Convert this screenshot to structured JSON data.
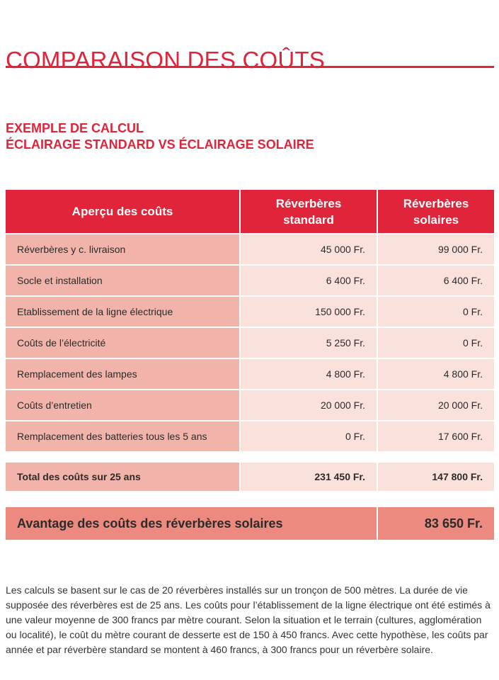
{
  "page": {
    "title": "COMPARAISON DES COÛTS",
    "subtitle_line1": "EXEMPLE DE CALCUL",
    "subtitle_line2": "ÉCLAIRAGE STANDARD VS ÉCLAIRAGE SOLAIRE"
  },
  "table": {
    "headers": {
      "col1": "Aperçu des coûts",
      "col2_line1": "Réverbères",
      "col2_line2": "standard",
      "col3_line1": "Réverbères",
      "col3_line2": "solaires"
    },
    "rows": [
      {
        "label": "Réverbères y c. livraison",
        "standard": "45 000 Fr.",
        "solaire": "99 000 Fr."
      },
      {
        "label": "Socle et installation",
        "standard": "6 400 Fr.",
        "solaire": "6 400 Fr."
      },
      {
        "label": "Etablissement de la ligne électrique",
        "standard": "150 000 Fr.",
        "solaire": "0 Fr."
      },
      {
        "label": "Coûts de l’électricité",
        "standard": "5 250 Fr.",
        "solaire": "0 Fr."
      },
      {
        "label": "Remplacement des lampes",
        "standard": "4 800 Fr.",
        "solaire": "4 800 Fr."
      },
      {
        "label": "Coûts d’entretien",
        "standard": "20 000 Fr.",
        "solaire": "20 000 Fr."
      },
      {
        "label": "Remplacement des batteries tous les 5 ans",
        "standard": "0 Fr.",
        "solaire": "17 600 Fr."
      }
    ],
    "total": {
      "label": "Total des coûts sur 25 ans",
      "standard": "231 450 Fr.",
      "solaire": "147 800 Fr."
    },
    "advantage": {
      "label": "Avantage des coûts des réverbères solaires",
      "value": "83 650 Fr."
    }
  },
  "note": "Les calculs se basent sur le cas de 20 réverbères installés sur un tronçon de 500 mètres. La durée de vie supposée des réverbères est de 25 ans. Les coûts pour l’établissement de la ligne électrique ont été estimés à une valeur moyenne de 300 francs par mètre courant. Selon la situation et le terrain (cultures, agglomération ou localité), le coût du mètre courant de desserte est de 150 à 450 francs. Avec cette hypothèse, les coûts par année et par réverbère standard se montent à 460 francs, à 300 francs pour un réverbère solaire.",
  "colors": {
    "accent": "#e0243a",
    "label_cell": "#f2b4aa",
    "value_cell": "#fbe1dc",
    "advantage": "#ed8a7f"
  }
}
